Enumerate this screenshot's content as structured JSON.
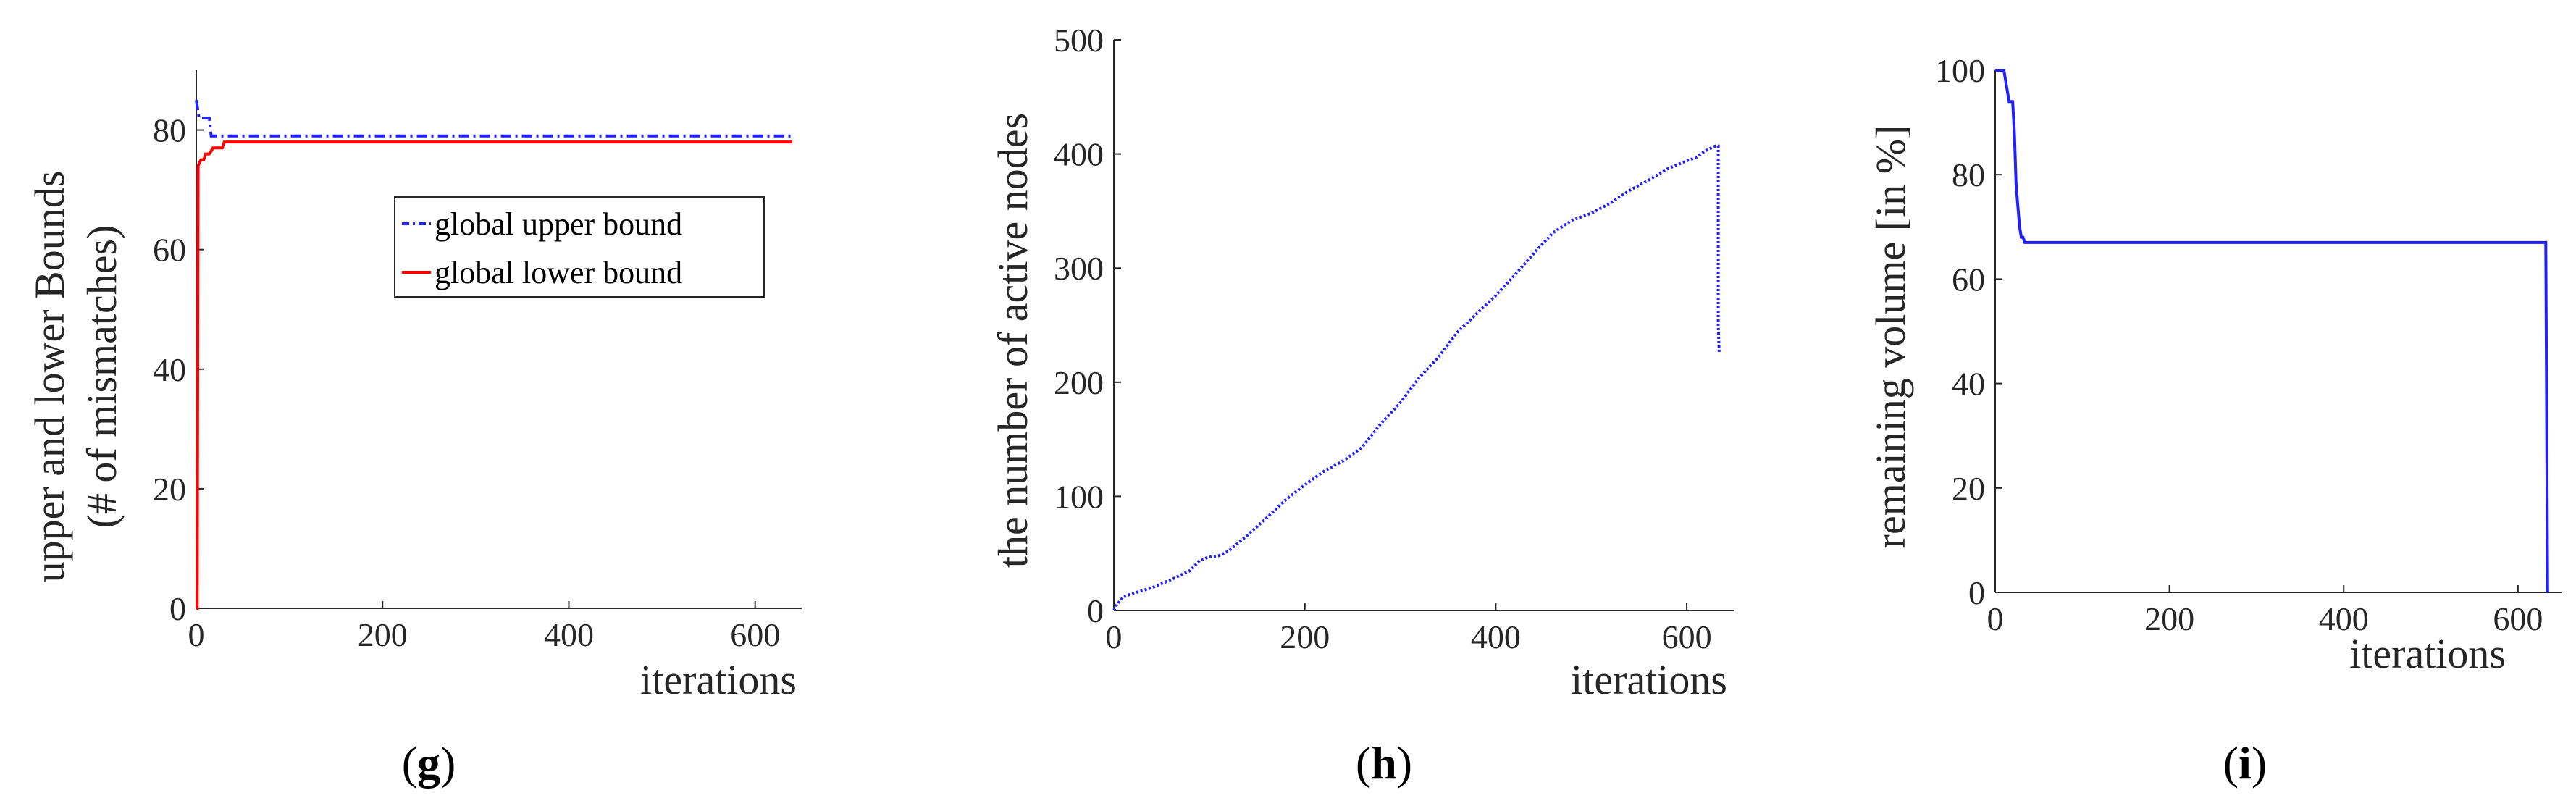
{
  "chart_data": [
    {
      "type": "line",
      "caption": "g",
      "xlabel": "iterations",
      "ylabel": [
        "upper and lower Bounds",
        "(# of mismatches)"
      ],
      "xlim": [
        0,
        650
      ],
      "ylim": [
        0,
        90
      ],
      "xticks": [
        0,
        200,
        400,
        600
      ],
      "yticks": [
        0,
        20,
        40,
        60,
        80
      ],
      "grid": false,
      "legend_position": "right-middle",
      "series": [
        {
          "name": "global upper bound",
          "color": "#1f1fff",
          "style": "dash-dot",
          "x": [
            0,
            1,
            2,
            3,
            4,
            5,
            6,
            10,
            14,
            16,
            18,
            630,
            640
          ],
          "y": [
            85,
            84,
            83,
            82,
            82,
            82,
            82,
            82,
            82,
            79,
            79,
            79,
            79
          ]
        },
        {
          "name": "global lower bound",
          "color": "#ff0000",
          "style": "solid",
          "x": [
            0,
            1,
            2,
            5,
            8,
            10,
            14,
            18,
            22,
            28,
            30,
            640
          ],
          "y": [
            0,
            0,
            74,
            75,
            75,
            76,
            76,
            77,
            77,
            77,
            78,
            78
          ]
        }
      ]
    },
    {
      "type": "line",
      "caption": "h",
      "xlabel": "iterations",
      "ylabel": [
        "the number of active nodes"
      ],
      "xlim": [
        0,
        650
      ],
      "ylim": [
        0,
        500
      ],
      "xticks": [
        0,
        200,
        400,
        600
      ],
      "yticks": [
        0,
        100,
        200,
        300,
        400,
        500
      ],
      "grid": false,
      "series": [
        {
          "color": "#1f1fff",
          "style": "dotted",
          "x": [
            0,
            3,
            6,
            10,
            20,
            40,
            60,
            80,
            90,
            100,
            110,
            120,
            140,
            160,
            180,
            200,
            220,
            240,
            260,
            280,
            300,
            320,
            340,
            360,
            380,
            400,
            420,
            440,
            460,
            480,
            500,
            520,
            540,
            560,
            580,
            600,
            610,
            620,
            630,
            633,
            633,
            634
          ],
          "y": [
            0,
            5,
            8,
            12,
            15,
            20,
            27,
            35,
            44,
            47,
            48,
            52,
            66,
            81,
            97,
            110,
            122,
            131,
            143,
            164,
            182,
            204,
            222,
            244,
            260,
            276,
            294,
            313,
            331,
            342,
            348,
            357,
            368,
            377,
            387,
            394,
            397,
            403,
            407,
            407,
            250,
            225
          ]
        }
      ]
    },
    {
      "type": "line",
      "caption": "i",
      "xlabel": "iterations",
      "ylabel": [
        "remaining volume [in %]"
      ],
      "xlim": [
        0,
        650
      ],
      "ylim": [
        0,
        100
      ],
      "xticks": [
        0,
        200,
        400,
        600
      ],
      "yticks": [
        0,
        20,
        40,
        60,
        80,
        100
      ],
      "grid": false,
      "series": [
        {
          "color": "#1f1fff",
          "style": "solid",
          "x": [
            0,
            4,
            10,
            14,
            16,
            20,
            22,
            24,
            26,
            28,
            30,
            32,
            34,
            40,
            630,
            632,
            634
          ],
          "y": [
            100,
            100,
            100,
            96,
            94,
            94,
            88,
            78,
            74,
            70,
            68,
            68,
            67,
            67,
            67,
            67,
            0
          ]
        }
      ]
    }
  ]
}
